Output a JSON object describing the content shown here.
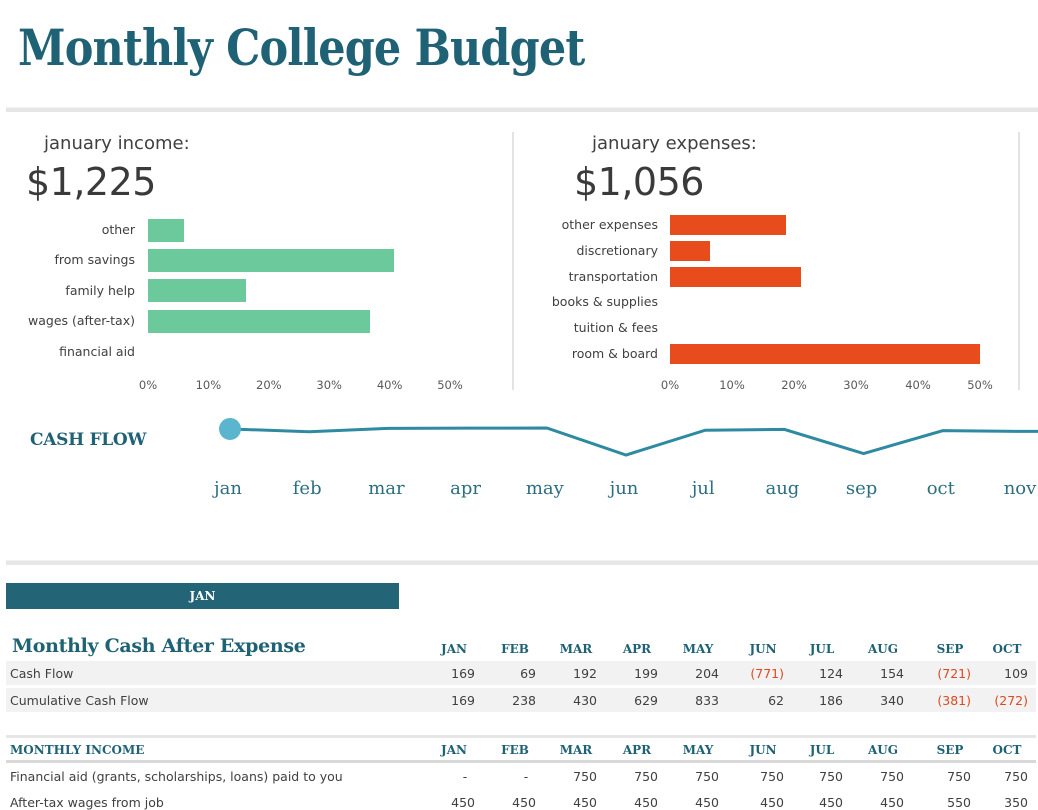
{
  "title": "Monthly College Budget",
  "colors": {
    "accent": "#1f6275",
    "income_bar": "#6cc99b",
    "expense_bar": "#e84c1c",
    "negative": "#e0481e",
    "line": "#2e8aa1",
    "marker": "#5bb5cf"
  },
  "income_panel": {
    "label": "january income:",
    "total": "$1,225",
    "categories": [
      "other",
      "from savings",
      "family help",
      "wages (after-tax)",
      "financial aid"
    ],
    "values_pct": [
      6,
      40.7,
      16.3,
      36.8,
      0
    ],
    "ticks": [
      "0%",
      "10%",
      "20%",
      "30%",
      "40%",
      "50%"
    ],
    "xlim": [
      0,
      50
    ]
  },
  "expense_panel": {
    "label": "january expenses:",
    "total": "$1,056",
    "categories": [
      "other expenses",
      "discretionary",
      "transportation",
      "books & supplies",
      "tuition & fees",
      "room & board"
    ],
    "values_pct": [
      18.7,
      6.5,
      21.1,
      0,
      0,
      50
    ],
    "ticks": [
      "0%",
      "10%",
      "20%",
      "30%",
      "40%",
      "50%"
    ],
    "xlim": [
      0,
      50
    ]
  },
  "cash_flow_chart": {
    "title": "CASH FLOW",
    "months": [
      "jan",
      "feb",
      "mar",
      "apr",
      "may",
      "jun",
      "jul",
      "aug",
      "sep",
      "oct",
      "nov"
    ],
    "values": [
      169,
      69,
      192,
      199,
      204,
      -771,
      124,
      154,
      -721,
      109,
      80
    ],
    "selected_month": "jan"
  },
  "selector": {
    "label": "JAN"
  },
  "cash_after_expense": {
    "title": "Monthly Cash After Expense",
    "columns": [
      "JAN",
      "FEB",
      "MAR",
      "APR",
      "MAY",
      "JUN",
      "JUL",
      "AUG",
      "SEP",
      "OCT"
    ],
    "rows": [
      {
        "label": "Cash Flow",
        "values": [
          "169",
          "69",
          "192",
          "199",
          "204",
          "(771)",
          "124",
          "154",
          "(721)",
          "109"
        ]
      },
      {
        "label": "Cumulative Cash Flow",
        "values": [
          "169",
          "238",
          "430",
          "629",
          "833",
          "62",
          "186",
          "340",
          "(381)",
          "(272)"
        ]
      }
    ]
  },
  "monthly_income": {
    "title": "MONTHLY INCOME",
    "columns": [
      "JAN",
      "FEB",
      "MAR",
      "APR",
      "MAY",
      "JUN",
      "JUL",
      "AUG",
      "SEP",
      "OCT"
    ],
    "rows": [
      {
        "label": "Financial aid (grants, scholarships, loans) paid to you",
        "values": [
          "-",
          "-",
          "750",
          "750",
          "750",
          "750",
          "750",
          "750",
          "750",
          "750"
        ]
      },
      {
        "label": "After-tax wages from job",
        "values": [
          "450",
          "450",
          "450",
          "450",
          "450",
          "450",
          "450",
          "450",
          "550",
          "350"
        ]
      }
    ]
  }
}
